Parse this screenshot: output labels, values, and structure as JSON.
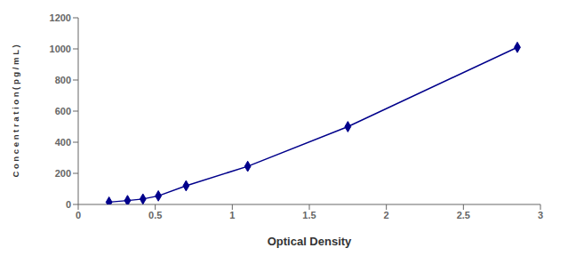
{
  "chart_data": {
    "type": "line",
    "x": [
      0.2,
      0.32,
      0.42,
      0.52,
      0.7,
      1.1,
      1.75,
      2.85
    ],
    "values": [
      15,
      25,
      35,
      55,
      120,
      245,
      500,
      1010
    ],
    "color": "#00008B",
    "marker": "diamond",
    "line_style": "solid",
    "xlabel": "Optical Density",
    "ylabel": "C o n c e n t r a t i o n ( p g / m L )",
    "xlim": [
      0,
      3.0
    ],
    "ylim": [
      0,
      1200
    ],
    "xticks": [
      0,
      0.5,
      1,
      1.5,
      2,
      2.5,
      3
    ],
    "yticks": [
      0,
      200,
      400,
      600,
      800,
      1000,
      1200
    ],
    "grid": false
  }
}
